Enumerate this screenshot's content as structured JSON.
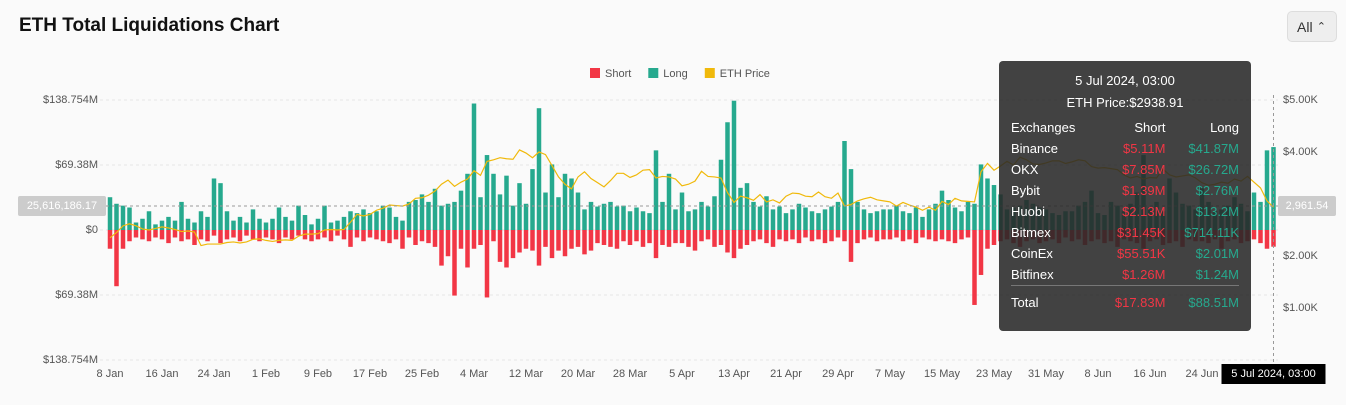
{
  "chart_data": {
    "type": "bar",
    "title": "ETH Total Liquidations Chart",
    "range_button": "All",
    "grid": true,
    "categories": [
      "8 Jan",
      null,
      null,
      null,
      null,
      null,
      null,
      null,
      "16 Jan",
      null,
      null,
      null,
      null,
      null,
      null,
      null,
      "24 Jan",
      null,
      null,
      null,
      null,
      null,
      null,
      null,
      "1 Feb",
      null,
      null,
      null,
      null,
      null,
      null,
      null,
      "9 Feb",
      null,
      null,
      null,
      null,
      null,
      null,
      null,
      "17 Feb",
      null,
      null,
      null,
      null,
      null,
      null,
      null,
      "25 Feb",
      null,
      null,
      null,
      null,
      null,
      null,
      null,
      "4 Mar",
      null,
      null,
      null,
      null,
      null,
      null,
      null,
      "12 Mar",
      null,
      null,
      null,
      null,
      null,
      null,
      null,
      "20 Mar",
      null,
      null,
      null,
      null,
      null,
      null,
      null,
      "28 Mar",
      null,
      null,
      null,
      null,
      null,
      null,
      null,
      "5 Apr",
      null,
      null,
      null,
      null,
      null,
      null,
      null,
      "13 Apr",
      null,
      null,
      null,
      null,
      null,
      null,
      null,
      "21 Apr",
      null,
      null,
      null,
      null,
      null,
      null,
      null,
      "29 Apr",
      null,
      null,
      null,
      null,
      null,
      null,
      null,
      "7 May",
      null,
      null,
      null,
      null,
      null,
      null,
      null,
      "15 May",
      null,
      null,
      null,
      null,
      null,
      null,
      null,
      "23 May",
      null,
      null,
      null,
      null,
      null,
      null,
      null,
      "31 May",
      null,
      null,
      null,
      null,
      null,
      null,
      null,
      "8 Jun",
      null,
      null,
      null,
      null,
      null,
      null,
      null,
      "16 Jun",
      null,
      null,
      null,
      null,
      null,
      null,
      null,
      "24 Jun",
      null,
      null,
      null,
      null,
      null,
      null,
      null,
      null,
      null,
      null,
      "5 Jul 2024, 03:00"
    ],
    "series": [
      {
        "name": "Short",
        "color": "#f23645",
        "values": [
          -20,
          -60,
          -20,
          -12,
          -8,
          -10,
          -12,
          -8,
          -10,
          -14,
          -8,
          -12,
          -10,
          -16,
          -10,
          -12,
          -6,
          -14,
          -10,
          -8,
          -12,
          -6,
          -10,
          -12,
          -8,
          -10,
          -14,
          -8,
          -10,
          -6,
          -10,
          -12,
          -10,
          -8,
          -12,
          -6,
          -10,
          -18,
          -8,
          -12,
          -8,
          -10,
          -12,
          -14,
          -10,
          -20,
          -8,
          -16,
          -12,
          -14,
          -18,
          -38,
          -28,
          -70,
          -20,
          -40,
          -20,
          -16,
          -72,
          -12,
          -34,
          -40,
          -30,
          -24,
          -20,
          -22,
          -38,
          -18,
          -30,
          -22,
          -28,
          -20,
          -18,
          -26,
          -22,
          -14,
          -16,
          -18,
          -20,
          -12,
          -16,
          -12,
          -18,
          -14,
          -30,
          -16,
          -18,
          -14,
          -14,
          -18,
          -22,
          -12,
          -10,
          -18,
          -16,
          -24,
          -30,
          -20,
          -16,
          -12,
          -10,
          -14,
          -18,
          -10,
          -12,
          -10,
          -14,
          -8,
          -12,
          -10,
          -14,
          -12,
          -8,
          -12,
          -34,
          -14,
          -10,
          -8,
          -12,
          -10,
          -10,
          -8,
          -12,
          -10,
          -14,
          -8,
          -10,
          -12,
          -10,
          -12,
          -14,
          -10,
          -8,
          -80,
          -48,
          -20,
          -16,
          -12,
          -10,
          -14,
          -18,
          -12,
          -10,
          -14,
          -12,
          -10,
          -14,
          -8,
          -12,
          -10,
          -16,
          -12,
          -10,
          -14,
          -12,
          -18,
          -10,
          -12,
          -14,
          -20,
          -12,
          -10,
          -16,
          -14,
          -12,
          -18,
          -10,
          -12,
          -12,
          -14,
          -10,
          -20,
          -12,
          -10,
          -14,
          -12,
          -10,
          -14,
          -20,
          -17.83
        ]
      },
      {
        "name": "Long",
        "color": "#26a98e",
        "values": [
          35,
          28,
          26,
          24,
          8,
          12,
          20,
          6,
          10,
          14,
          10,
          30,
          12,
          8,
          20,
          14,
          55,
          50,
          20,
          10,
          14,
          8,
          22,
          12,
          8,
          12,
          24,
          14,
          10,
          26,
          16,
          6,
          12,
          26,
          8,
          10,
          14,
          20,
          18,
          22,
          18,
          20,
          26,
          24,
          14,
          10,
          30,
          32,
          38,
          30,
          44,
          26,
          28,
          30,
          42,
          60,
          135,
          35,
          80,
          60,
          38,
          58,
          26,
          50,
          28,
          65,
          130,
          40,
          70,
          35,
          60,
          55,
          40,
          22,
          30,
          25,
          28,
          30,
          25,
          26,
          20,
          24,
          20,
          18,
          85,
          30,
          60,
          22,
          40,
          20,
          22,
          30,
          25,
          36,
          75,
          115,
          138,
          45,
          50,
          30,
          25,
          36,
          22,
          25,
          18,
          22,
          28,
          24,
          20,
          18,
          22,
          25,
          30,
          95,
          65,
          30,
          22,
          18,
          20,
          22,
          22,
          26,
          20,
          18,
          24,
          14,
          22,
          28,
          42,
          32,
          24,
          20,
          30,
          28,
          70,
          55,
          48,
          38,
          22,
          24,
          26,
          32,
          28,
          24,
          22,
          18,
          16,
          20,
          20,
          26,
          30,
          42,
          18,
          16,
          30,
          26,
          20,
          28,
          40,
          80,
          24,
          30,
          20,
          55,
          40,
          28,
          26,
          22,
          45,
          30,
          20,
          22,
          26,
          35,
          28,
          20,
          40,
          30,
          85,
          88.51
        ]
      },
      {
        "name": "ETH Price",
        "color": "#f0b90b",
        "type": "line",
        "axis": "y2",
        "values": [
          2350,
          2450,
          2580,
          2620,
          2580,
          2520,
          2500,
          2530,
          2560,
          2540,
          2510,
          2470,
          2480,
          2460,
          2200,
          2230,
          2230,
          2230,
          2260,
          2270,
          2250,
          2270,
          2320,
          2330,
          2300,
          2280,
          2300,
          2310,
          2300,
          2380,
          2420,
          2420,
          2430,
          2500,
          2510,
          2500,
          2510,
          2650,
          2800,
          2770,
          2800,
          2880,
          2920,
          2980,
          2970,
          2960,
          3000,
          3110,
          3120,
          3170,
          3250,
          3380,
          3460,
          3340,
          3420,
          3480,
          3640,
          3550,
          3820,
          3850,
          3890,
          3870,
          3860,
          4040,
          3980,
          3890,
          4000,
          3950,
          3740,
          3520,
          3380,
          3290,
          3520,
          3620,
          3490,
          3410,
          3330,
          3450,
          3590,
          3590,
          3510,
          3560,
          3650,
          3660,
          3500,
          3530,
          3520,
          3480,
          3350,
          3380,
          3440,
          3630,
          3530,
          3520,
          3500,
          3220,
          3030,
          3150,
          3120,
          3070,
          3180,
          3040,
          3080,
          3020,
          3150,
          3210,
          3200,
          3150,
          3140,
          3230,
          3140,
          3110,
          3210,
          2960,
          2990,
          3060,
          3100,
          3130,
          3080,
          3060,
          3040,
          2960,
          3030,
          2980,
          2940,
          2880,
          2940,
          2880,
          3050,
          2990,
          3110,
          3060,
          3050,
          3040,
          3620,
          3780,
          3650,
          3730,
          3820,
          3750,
          3900,
          3850,
          3770,
          3760,
          3790,
          3830,
          3830,
          3780,
          3810,
          3850,
          3830,
          3720,
          3690,
          3700,
          3680,
          3660,
          3560,
          3500,
          3530,
          3480,
          3510,
          3500,
          3670,
          3560,
          3520,
          3540,
          3560,
          3500,
          3410,
          3360,
          3380,
          3420,
          3400,
          3480,
          3440,
          3530,
          3420,
          3310,
          3060,
          2938.91
        ]
      }
    ],
    "ylim": [
      -138.754,
      138.754
    ],
    "yticks": [
      {
        "value": 138.754,
        "label": "$138.754M"
      },
      {
        "value": 69.38,
        "label": "$69.38M"
      },
      {
        "value": 0,
        "label": "$0"
      },
      {
        "value": -69.38,
        "label": "$69.38M"
      },
      {
        "value": -138.754,
        "label": "$138.754M"
      }
    ],
    "y2lim": [
      0,
      5000
    ],
    "y2ticks": [
      {
        "value": 5000,
        "label": "$5.00K"
      },
      {
        "value": 4000,
        "label": "$4.00K"
      },
      {
        "value": 3000,
        "label": "$3.00K"
      },
      {
        "value": 2000,
        "label": "$2.00K"
      },
      {
        "value": 1000,
        "label": "$1.00K"
      }
    ],
    "crosshair": {
      "y": {
        "value": 25.61618617,
        "label": "25,616,186.17"
      },
      "y2": {
        "value": 2961.54,
        "label": "2,961.54"
      }
    },
    "tooltip": {
      "title": "5 Jul 2024, 03:00",
      "price": "ETH Price:$2938.91",
      "columns": [
        "Exchanges",
        "Short",
        "Long"
      ],
      "rows": [
        [
          "Binance",
          "$5.11M",
          "$41.87M"
        ],
        [
          "OKX",
          "$7.85M",
          "$26.72M"
        ],
        [
          "Bybit",
          "$1.39M",
          "$2.76M"
        ],
        [
          "Huobi",
          "$2.13M",
          "$13.2M"
        ],
        [
          "Bitmex",
          "$31.45K",
          "$714.11K"
        ],
        [
          "CoinEx",
          "$55.51K",
          "$2.01M"
        ],
        [
          "Bitfinex",
          "$1.26M",
          "$1.24M"
        ]
      ],
      "total": [
        "Total",
        "$17.83M",
        "$88.51M"
      ]
    }
  }
}
